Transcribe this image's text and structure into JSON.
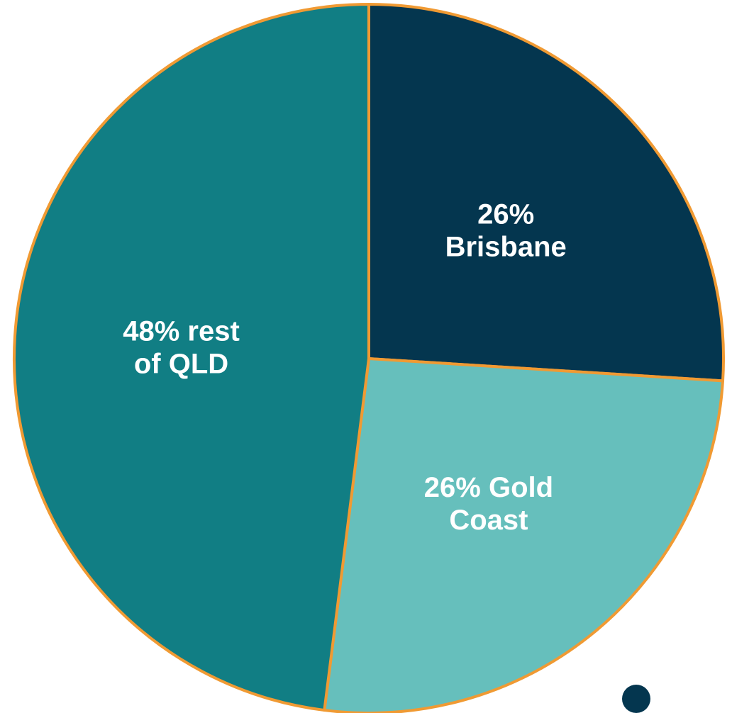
{
  "chart_data": {
    "type": "pie",
    "start": "top, clockwise",
    "slices": [
      {
        "name": "Brisbane",
        "value": 26,
        "label_lines": [
          "26%",
          "Brisbane"
        ],
        "color": "#04364f"
      },
      {
        "name": "Gold Coast",
        "value": 26,
        "label_lines": [
          "26% Gold",
          "Coast"
        ],
        "color": "#66bfbc"
      },
      {
        "name": "rest of QLD",
        "value": 48,
        "label_lines": [
          "48% rest",
          "of QLD"
        ],
        "color": "#117e84"
      }
    ],
    "slice_border_color": "#f09a33"
  },
  "decoration": {
    "dot_color": "#04364f"
  }
}
